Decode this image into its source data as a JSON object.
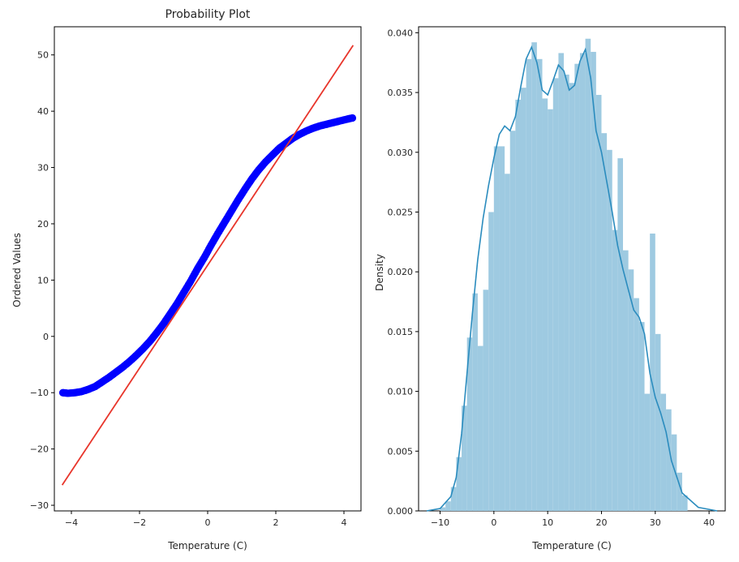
{
  "chart_data": [
    {
      "type": "scatter",
      "title": "Probability Plot",
      "xlabel": "Temperature (C)",
      "ylabel": "Ordered Values",
      "xlim": [
        -4.5,
        4.5
      ],
      "ylim": [
        -31,
        55
      ],
      "xticks": [
        -4,
        -2,
        0,
        2,
        4
      ],
      "yticks": [
        -30,
        -20,
        -10,
        0,
        10,
        20,
        30,
        40,
        50
      ],
      "grid": false,
      "marker_color": "#0000ff",
      "fit_line_color": "#e8352b",
      "fit_line": {
        "x": [
          -4.27,
          4.27
        ],
        "y": [
          -26.4,
          51.7
        ]
      },
      "points": {
        "x": [
          -4.25,
          -4.1,
          -3.9,
          -3.7,
          -3.5,
          -3.3,
          -3.1,
          -2.9,
          -2.7,
          -2.5,
          -2.3,
          -2.1,
          -1.9,
          -1.7,
          -1.5,
          -1.3,
          -1.1,
          -0.9,
          -0.7,
          -0.5,
          -0.3,
          -0.1,
          0.1,
          0.3,
          0.5,
          0.7,
          0.9,
          1.1,
          1.3,
          1.5,
          1.7,
          1.9,
          2.1,
          2.3,
          2.5,
          2.7,
          2.9,
          3.1,
          3.3,
          3.5,
          3.7,
          3.9,
          4.1,
          4.25
        ],
        "y": [
          -10.0,
          -10.1,
          -10.0,
          -9.8,
          -9.4,
          -8.9,
          -8.1,
          -7.3,
          -6.4,
          -5.5,
          -4.5,
          -3.4,
          -2.2,
          -0.9,
          0.6,
          2.2,
          4.0,
          5.8,
          7.8,
          9.8,
          12.0,
          14.0,
          16.2,
          18.3,
          20.3,
          22.3,
          24.3,
          26.2,
          28.0,
          29.6,
          31.0,
          32.2,
          33.4,
          34.3,
          35.2,
          35.9,
          36.5,
          37.0,
          37.4,
          37.7,
          38.0,
          38.3,
          38.6,
          38.8
        ]
      }
    },
    {
      "type": "bar",
      "subtype": "histogram with density curve",
      "xlabel": "Temperature (C)",
      "ylabel": "Density",
      "xlim": [
        -14,
        43
      ],
      "ylim": [
        0,
        0.0405
      ],
      "xticks": [
        -10,
        0,
        10,
        20,
        30,
        40
      ],
      "yticks": [
        0.0,
        0.005,
        0.01,
        0.015,
        0.02,
        0.025,
        0.03,
        0.035,
        0.04
      ],
      "ytick_labels": [
        "0.000",
        "0.005",
        "0.010",
        "0.015",
        "0.020",
        "0.025",
        "0.030",
        "0.035",
        "0.040"
      ],
      "grid": false,
      "bar_color": "#9ecae1",
      "curve_color": "#2b8cbe",
      "bin_width": 1.0,
      "bin_edges_start": -10,
      "values": [
        0.0003,
        0.0008,
        0.002,
        0.0045,
        0.0088,
        0.0145,
        0.0182,
        0.0138,
        0.0185,
        0.025,
        0.0305,
        0.0305,
        0.0282,
        0.0318,
        0.0344,
        0.0354,
        0.0378,
        0.0392,
        0.0378,
        0.0345,
        0.0336,
        0.0362,
        0.0383,
        0.0365,
        0.0358,
        0.0374,
        0.0383,
        0.0395,
        0.0384,
        0.0348,
        0.0316,
        0.0302,
        0.0235,
        0.0295,
        0.0218,
        0.0202,
        0.0178,
        0.0158,
        0.0098,
        0.0232,
        0.0148,
        0.0098,
        0.0085,
        0.0064,
        0.0032,
        0.0013
      ],
      "density_curve": {
        "x": [
          -12.5,
          -10,
          -8,
          -7,
          -6,
          -5,
          -4,
          -3,
          -2,
          -1,
          0,
          1,
          2,
          3,
          4,
          5,
          6,
          7,
          8,
          9,
          10,
          11,
          12,
          13,
          14,
          15,
          16,
          17,
          18,
          19,
          20,
          21,
          22,
          23,
          24,
          25,
          26,
          27,
          28,
          29,
          30,
          31,
          32,
          33,
          35,
          38,
          41.5
        ],
        "y": [
          0.0,
          0.0002,
          0.0012,
          0.0028,
          0.0065,
          0.0115,
          0.0165,
          0.021,
          0.0245,
          0.0272,
          0.0295,
          0.0315,
          0.0322,
          0.0318,
          0.033,
          0.0355,
          0.0378,
          0.0388,
          0.0375,
          0.0352,
          0.0348,
          0.036,
          0.0373,
          0.0368,
          0.0352,
          0.0356,
          0.0376,
          0.0386,
          0.0362,
          0.0318,
          0.03,
          0.0275,
          0.025,
          0.0222,
          0.0202,
          0.0185,
          0.0168,
          0.0162,
          0.0148,
          0.0115,
          0.0095,
          0.0082,
          0.0066,
          0.0042,
          0.0015,
          0.0003,
          0.0
        ]
      }
    }
  ]
}
